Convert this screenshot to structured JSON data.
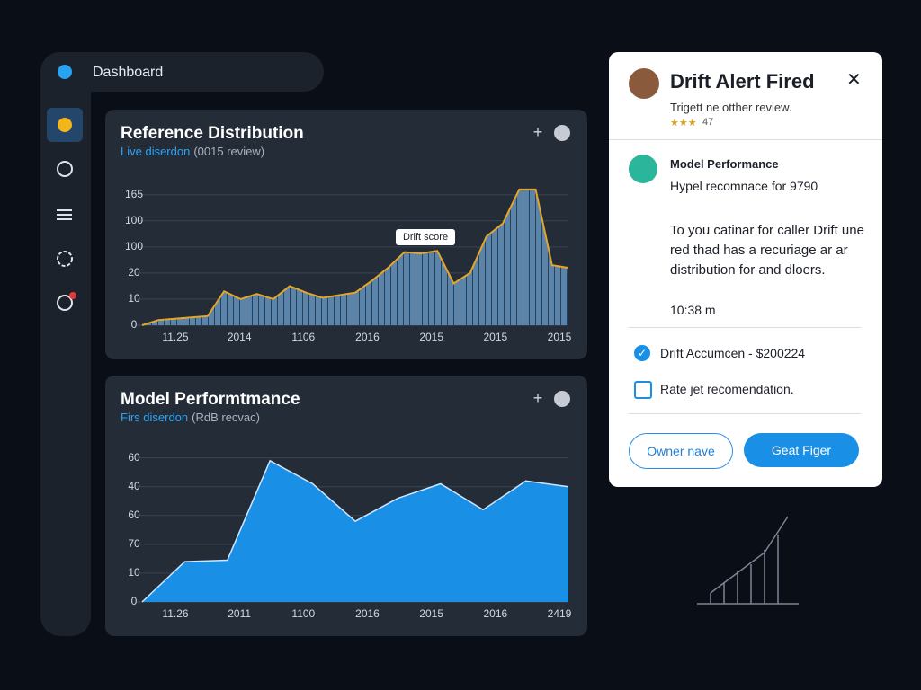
{
  "sidebar": {
    "title": "Dashboard"
  },
  "charts": [
    {
      "type": "area",
      "title": "Reference Distribution",
      "subtitle_accent": "Live diserdon",
      "subtitle": "(0015 review)",
      "annotation": "Drift score",
      "ylim": [
        0,
        5.3
      ],
      "yticks": [
        0,
        {
          "value": 1,
          "label": "10"
        },
        {
          "value": 2,
          "label": "20"
        },
        {
          "value": 3,
          "label": "100"
        },
        {
          "value": 4,
          "label": "100"
        },
        {
          "value": 5,
          "label": "165"
        }
      ],
      "x_labels": [
        "11.25",
        "2014",
        "1106",
        "2016",
        "2015",
        "2015",
        "2015"
      ],
      "values": [
        0,
        0.2,
        0.25,
        0.3,
        0.35,
        1.3,
        1.0,
        1.2,
        1.0,
        1.5,
        1.25,
        1.05,
        1.15,
        1.25,
        1.7,
        2.2,
        2.8,
        2.75,
        2.85,
        1.6,
        2.0,
        3.4,
        3.9,
        5.2,
        5.2,
        2.3,
        2.2
      ],
      "color": "#5a84aa",
      "line_color": "#e3a62b"
    },
    {
      "type": "area",
      "title": "Model Performtmance",
      "subtitle_accent": "Firs diserdon",
      "subtitle": "(RdB recvac)",
      "ylim": [
        0,
        5.3
      ],
      "yticks": [
        0,
        {
          "value": 1,
          "label": "10"
        },
        {
          "value": 2,
          "label": "70"
        },
        {
          "value": 3,
          "label": "60"
        },
        {
          "value": 4,
          "label": "40"
        },
        {
          "value": 5,
          "label": "60"
        }
      ],
      "x_labels": [
        "11.26",
        "2011",
        "1100",
        "2016",
        "2015",
        "2016",
        "2419"
      ],
      "values": [
        0,
        1.4,
        1.45,
        4.9,
        4.1,
        2.8,
        3.6,
        4.1,
        3.2,
        4.2,
        4.0
      ],
      "color": "#1a8fe6",
      "line_color": "#cde6ff"
    }
  ],
  "alert": {
    "title": "Drift Alert Fired",
    "subtitle": "Trigett ne otther review.",
    "rating": "47",
    "item_title": "Model Performance",
    "item_text": "Hypel recomnace for 9790",
    "message": "To you catinar for caller Drift une red thad has a recuriage ar ar distribution for and dloers.",
    "time": "10:38 m",
    "checks": [
      {
        "label": "Drift Accumcen - $200224",
        "checked": true
      },
      {
        "label": "Rate jet recomendation.",
        "checked": false
      }
    ],
    "buttons": [
      "Owner nave",
      "Geat Figer"
    ]
  }
}
